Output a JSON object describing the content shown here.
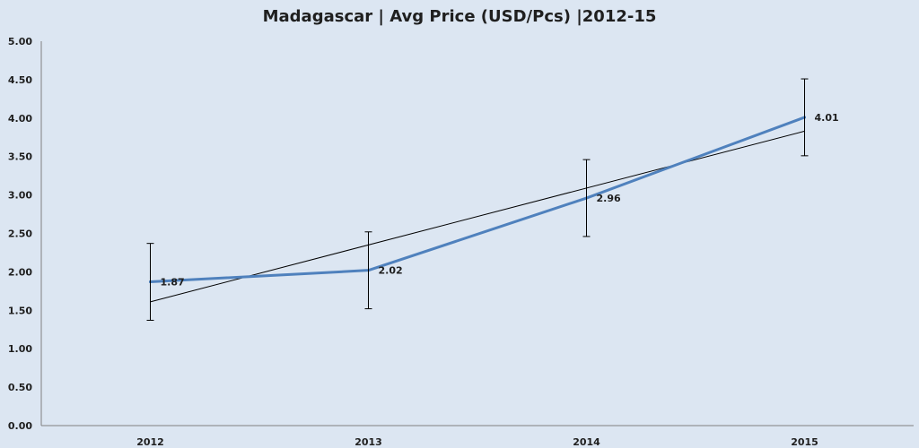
{
  "chart_data": {
    "type": "line",
    "title": "Madagascar  | Avg Price (USD/Pcs) |2012-15",
    "xlabel": "",
    "ylabel": "",
    "categories": [
      "2012",
      "2013",
      "2014",
      "2015"
    ],
    "series": [
      {
        "values": [
          1.87,
          2.02,
          2.96,
          4.01
        ],
        "color": "#4f81bd",
        "data_labels": [
          "1.87",
          "2.02",
          "2.96",
          "4.01"
        ],
        "error_bar": 0.5
      }
    ],
    "trendline": {
      "type": "linear",
      "color": "#000000",
      "start": 1.61,
      "end": 3.83
    },
    "ylim": [
      0,
      5
    ],
    "yticks": [
      "0.00",
      "0.50",
      "1.00",
      "1.50",
      "2.00",
      "2.50",
      "3.00",
      "3.50",
      "4.00",
      "4.50",
      "5.00"
    ],
    "ytick_values": [
      0,
      0.5,
      1,
      1.5,
      2,
      2.5,
      3,
      3.5,
      4,
      4.5,
      5
    ],
    "grid": false,
    "legend": "none",
    "background_color": "#dce6f2"
  }
}
